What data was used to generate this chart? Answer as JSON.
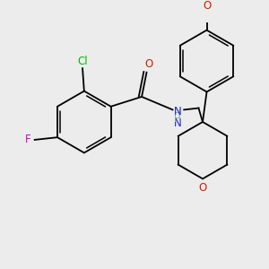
{
  "bg_color": "#ececec",
  "colors": {
    "bond": "#000000",
    "N": "#2020cc",
    "O": "#cc2000",
    "F": "#cc00cc",
    "Cl": "#00bb00"
  },
  "lw": 1.3,
  "dbo": 0.012,
  "fs": 8.0
}
